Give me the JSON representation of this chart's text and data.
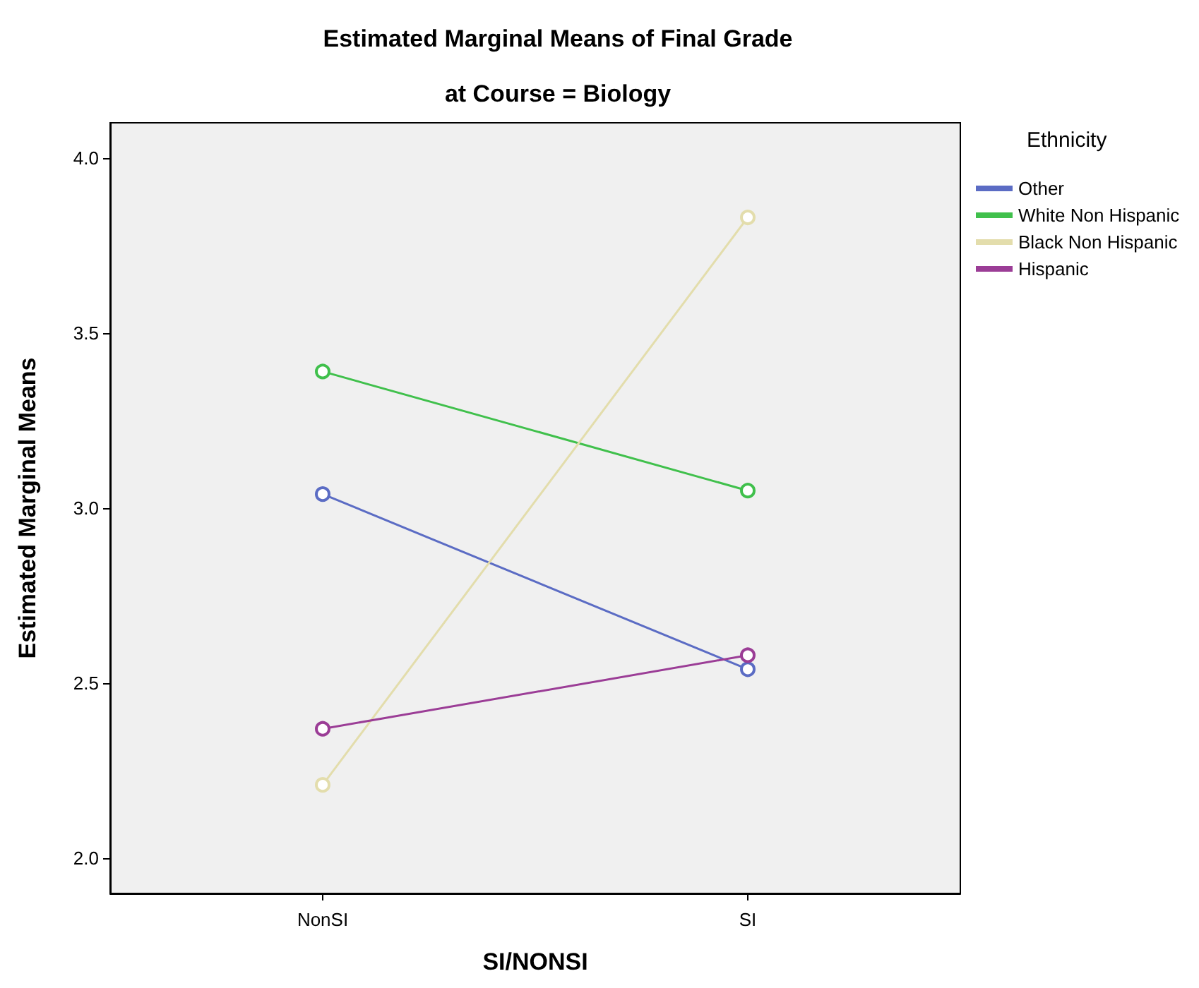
{
  "chart_data": {
    "type": "line",
    "title": "Estimated Marginal Means of Final Grade",
    "subtitle": "at Course = Biology",
    "xlabel": "SI/NONSI",
    "ylabel": "Estimated Marginal Means",
    "legend_title": "Ethnicity",
    "categories": [
      "NonSI",
      "SI"
    ],
    "series": [
      {
        "name": "Other",
        "color": "#5b6cc4",
        "values": [
          3.04,
          2.54
        ]
      },
      {
        "name": "White Non Hispanic",
        "color": "#40c04c",
        "values": [
          3.39,
          3.05
        ]
      },
      {
        "name": "Black Non Hispanic",
        "color": "#e3ddac",
        "values": [
          2.21,
          3.83
        ]
      },
      {
        "name": "Hispanic",
        "color": "#9b3d96",
        "values": [
          2.37,
          2.58
        ]
      }
    ],
    "ylim": [
      1.9,
      4.1
    ],
    "yticks": [
      {
        "value": 2,
        "label": "2.0"
      },
      {
        "value": 2.5,
        "label": "2.5"
      },
      {
        "value": 3,
        "label": "3.0"
      },
      {
        "value": 3.5,
        "label": "3.5"
      },
      {
        "value": 4,
        "label": "4.0"
      }
    ],
    "grid": false,
    "legend": "top right",
    "marker": "circle",
    "line_style": "solid"
  }
}
